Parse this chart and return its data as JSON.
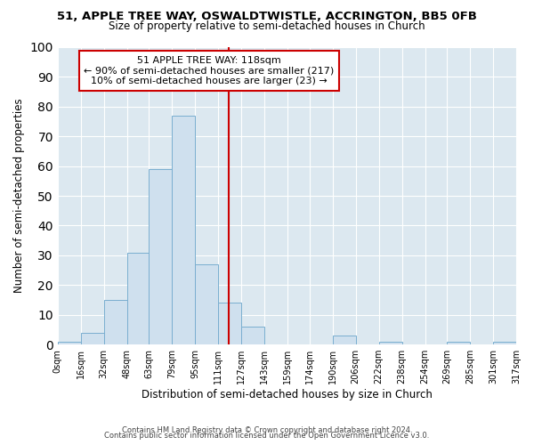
{
  "title": "51, APPLE TREE WAY, OSWALDTWISTLE, ACCRINGTON, BB5 0FB",
  "subtitle": "Size of property relative to semi-detached houses in Church",
  "xlabel": "Distribution of semi-detached houses by size in Church",
  "ylabel": "Number of semi-detached properties",
  "bar_color": "#cfe0ee",
  "bar_edge_color": "#7aaed0",
  "bin_edges": [
    0,
    16,
    32,
    48,
    63,
    79,
    95,
    111,
    127,
    143,
    159,
    174,
    190,
    206,
    222,
    238,
    254,
    269,
    285,
    301,
    317
  ],
  "bar_heights": [
    1,
    4,
    15,
    31,
    59,
    77,
    27,
    14,
    6,
    0,
    0,
    0,
    3,
    0,
    1,
    0,
    0,
    1,
    0,
    1
  ],
  "tick_labels": [
    "0sqm",
    "16sqm",
    "32sqm",
    "48sqm",
    "63sqm",
    "79sqm",
    "95sqm",
    "111sqm",
    "127sqm",
    "143sqm",
    "159sqm",
    "174sqm",
    "190sqm",
    "206sqm",
    "222sqm",
    "238sqm",
    "254sqm",
    "269sqm",
    "285sqm",
    "301sqm",
    "317sqm"
  ],
  "vline_x": 118,
  "vline_color": "#cc0000",
  "annotation_title": "51 APPLE TREE WAY: 118sqm",
  "annotation_line1": "← 90% of semi-detached houses are smaller (217)",
  "annotation_line2": "10% of semi-detached houses are larger (23) →",
  "annotation_box_color": "#ffffff",
  "annotation_box_edge": "#cc0000",
  "ylim": [
    0,
    100
  ],
  "yticks": [
    0,
    10,
    20,
    30,
    40,
    50,
    60,
    70,
    80,
    90,
    100
  ],
  "background_color": "#ffffff",
  "plot_bg_color": "#dce8f0",
  "grid_color": "#ffffff",
  "footer1": "Contains HM Land Registry data © Crown copyright and database right 2024.",
  "footer2": "Contains public sector information licensed under the Open Government Licence v3.0."
}
